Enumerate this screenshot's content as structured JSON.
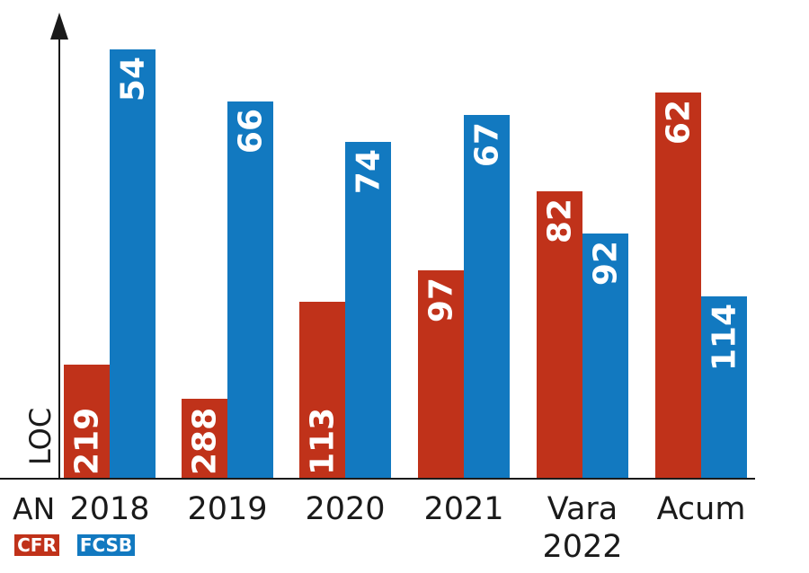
{
  "chart_data": {
    "type": "bar",
    "orientation": "vertical",
    "value_meaning": "rank (lower is better)",
    "ylabel": "LOC",
    "xlabel": "AN",
    "categories": [
      [
        "2018"
      ],
      [
        "2019"
      ],
      [
        "2020"
      ],
      [
        "2021"
      ],
      [
        "Vara",
        "2022"
      ],
      [
        "Acum"
      ]
    ],
    "series": [
      {
        "name": "CFR",
        "color": "#c0321a",
        "values": [
          219,
          288,
          113,
          97,
          82,
          62
        ]
      },
      {
        "name": "FCSB",
        "color": "#1279c0",
        "values": [
          54,
          66,
          74,
          67,
          92,
          114
        ]
      }
    ],
    "grid": false,
    "legend": "bottom-left"
  }
}
